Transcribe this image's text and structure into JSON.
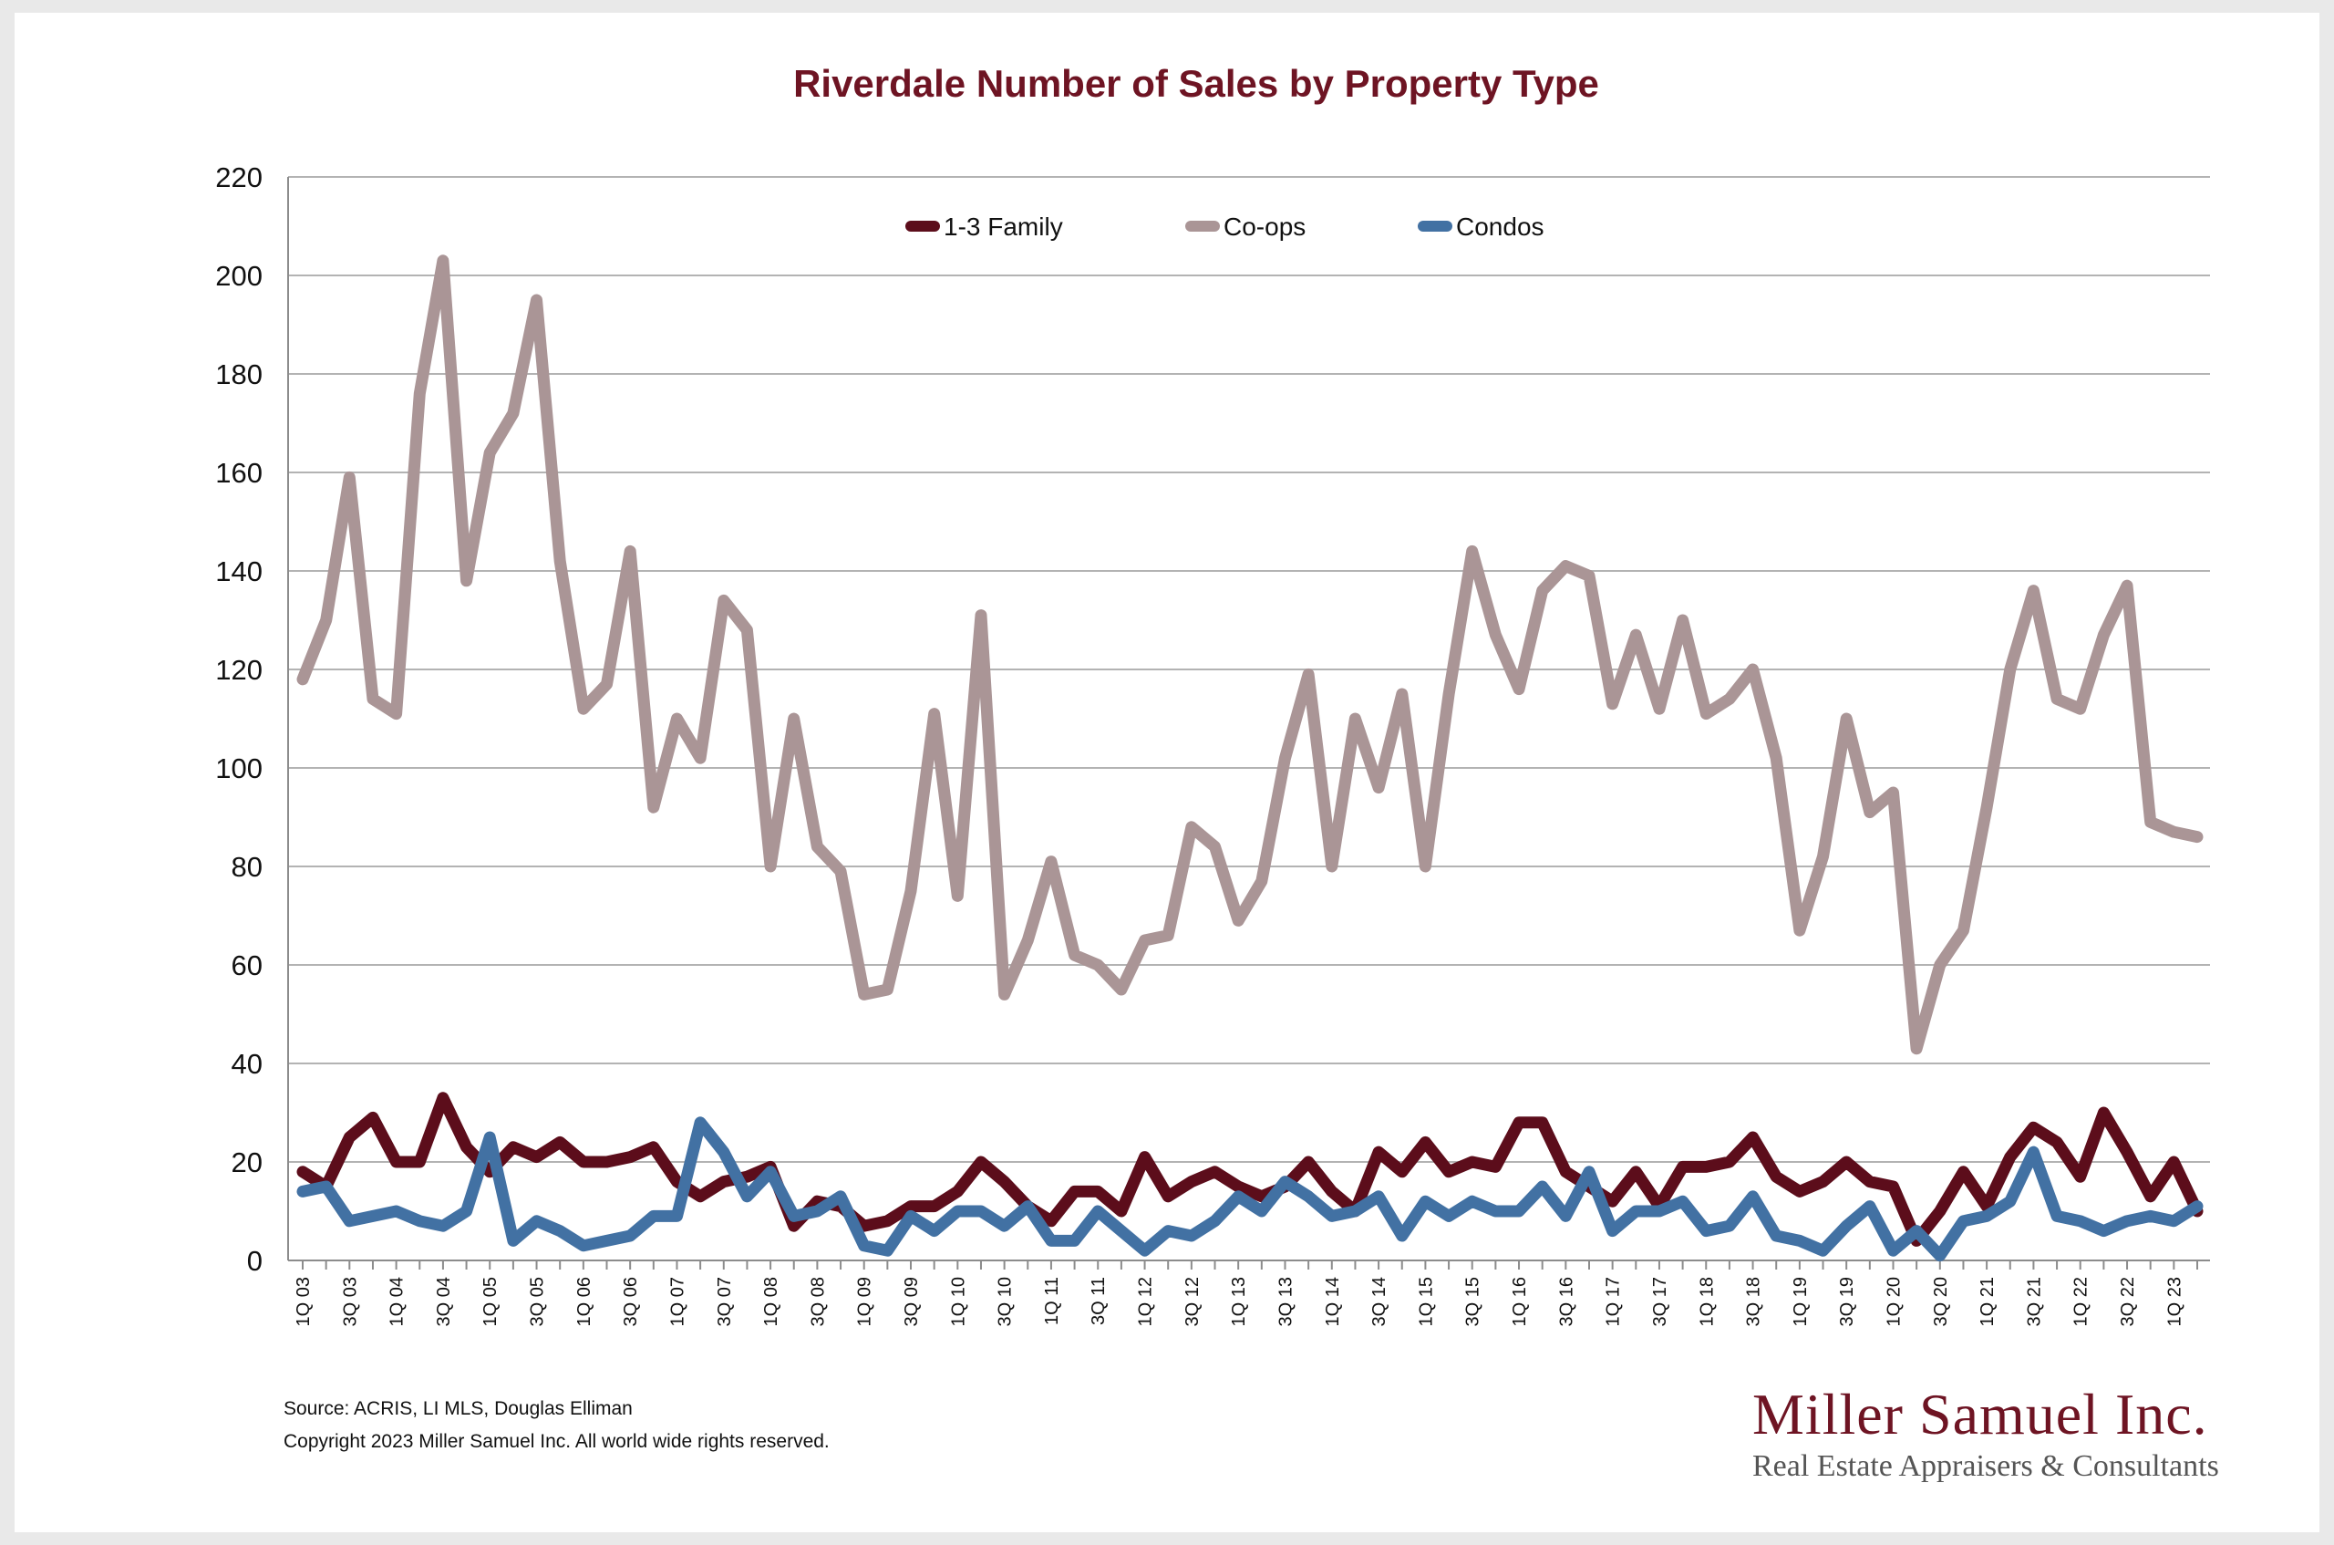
{
  "chart_data": {
    "type": "line",
    "title": "Riverdale Number of Sales by Property Type",
    "xlabel": "",
    "ylabel": "",
    "ylim": [
      0,
      220
    ],
    "yticks": [
      "0",
      "20",
      "40",
      "60",
      "80",
      "100",
      "120",
      "140",
      "160",
      "180",
      "200",
      "220"
    ],
    "grid": true,
    "legend_position": "top-center",
    "categories": [
      "1Q 03",
      "2Q 03",
      "3Q 03",
      "4Q 03",
      "1Q 04",
      "2Q 04",
      "3Q 04",
      "4Q 04",
      "1Q 05",
      "2Q 05",
      "3Q 05",
      "4Q 05",
      "1Q 06",
      "2Q 06",
      "3Q 06",
      "4Q 06",
      "1Q 07",
      "2Q 07",
      "3Q 07",
      "4Q 07",
      "1Q 08",
      "2Q 08",
      "3Q 08",
      "4Q 08",
      "1Q 09",
      "2Q 09",
      "3Q 09",
      "4Q 09",
      "1Q 10",
      "2Q 10",
      "3Q 10",
      "4Q 10",
      "1Q 11",
      "2Q 11",
      "3Q 11",
      "4Q 11",
      "1Q 12",
      "2Q 12",
      "3Q 12",
      "4Q 12",
      "1Q 13",
      "2Q 13",
      "3Q 13",
      "4Q 13",
      "1Q 14",
      "2Q 14",
      "3Q 14",
      "4Q 14",
      "1Q 15",
      "2Q 15",
      "3Q 15",
      "4Q 15",
      "1Q 16",
      "2Q 16",
      "3Q 16",
      "4Q 16",
      "1Q 17",
      "2Q 17",
      "3Q 17",
      "4Q 17",
      "1Q 18",
      "2Q 18",
      "3Q 18",
      "4Q 18",
      "1Q 19",
      "2Q 19",
      "3Q 19",
      "4Q 19",
      "1Q 20",
      "2Q 20",
      "3Q 20",
      "4Q 20",
      "1Q 21",
      "2Q 21",
      "3Q 21",
      "4Q 21",
      "1Q 22",
      "2Q 22",
      "3Q 22",
      "4Q 22",
      "1Q 23",
      "2Q 23"
    ],
    "series": [
      {
        "name": "1-3 Family",
        "color": "#5c0d1b",
        "values": [
          18,
          15,
          25,
          29,
          20,
          20,
          33,
          23,
          18,
          23,
          21,
          24,
          20,
          20,
          21,
          23,
          16,
          13,
          16,
          17,
          19,
          7,
          12,
          11,
          7,
          8,
          11,
          11,
          14,
          20,
          16,
          11,
          8,
          14,
          14,
          10,
          21,
          13,
          16,
          18,
          15,
          13,
          15,
          20,
          14,
          10,
          22,
          18,
          24,
          18,
          20,
          19,
          28,
          28,
          18,
          15,
          12,
          18,
          11,
          19,
          19,
          20,
          25,
          17,
          14,
          16,
          20,
          16,
          15,
          4,
          10,
          18,
          11,
          21,
          27,
          24,
          17,
          30,
          22,
          13,
          20,
          10
        ]
      },
      {
        "name": "Co-ops",
        "color": "#aa9596",
        "values": [
          118,
          130,
          159,
          114,
          111,
          176,
          203,
          138,
          164,
          172,
          195,
          142,
          112,
          117,
          144,
          92,
          110,
          102,
          134,
          128,
          80,
          110,
          84,
          79,
          54,
          55,
          75,
          111,
          74,
          131,
          54,
          65,
          81,
          62,
          60,
          55,
          65,
          66,
          88,
          84,
          69,
          77,
          102,
          119,
          80,
          110,
          96,
          115,
          80,
          115,
          144,
          127,
          116,
          136,
          141,
          139,
          113,
          127,
          112,
          130,
          111,
          114,
          120,
          102,
          67,
          82,
          110,
          91,
          95,
          43,
          60,
          67,
          92,
          120,
          136,
          114,
          112,
          127,
          137,
          89,
          87,
          86
        ]
      },
      {
        "name": "Condos",
        "color": "#4271a3",
        "values": [
          14,
          15,
          8,
          9,
          10,
          8,
          7,
          10,
          25,
          4,
          8,
          6,
          3,
          4,
          5,
          9,
          9,
          28,
          22,
          13,
          18,
          9,
          10,
          13,
          3,
          2,
          9,
          6,
          10,
          10,
          7,
          11,
          4,
          4,
          10,
          6,
          2,
          6,
          5,
          8,
          13,
          10,
          16,
          13,
          9,
          10,
          13,
          5,
          12,
          9,
          12,
          10,
          10,
          15,
          9,
          18,
          6,
          10,
          10,
          12,
          6,
          7,
          13,
          5,
          4,
          2,
          7,
          11,
          2,
          6,
          1,
          8,
          9,
          12,
          22,
          9,
          8,
          6,
          8,
          9,
          8,
          11
        ]
      }
    ]
  },
  "footer": {
    "source": "Source: ACRIS, LI MLS, Douglas Elliman",
    "copyright": "Copyright 2023 Miller Samuel Inc.  All world wide rights reserved."
  },
  "brand": {
    "name": "Miller Samuel Inc.",
    "tagline": "Real Estate Appraisers & Consultants",
    "color": "#6e1423"
  }
}
